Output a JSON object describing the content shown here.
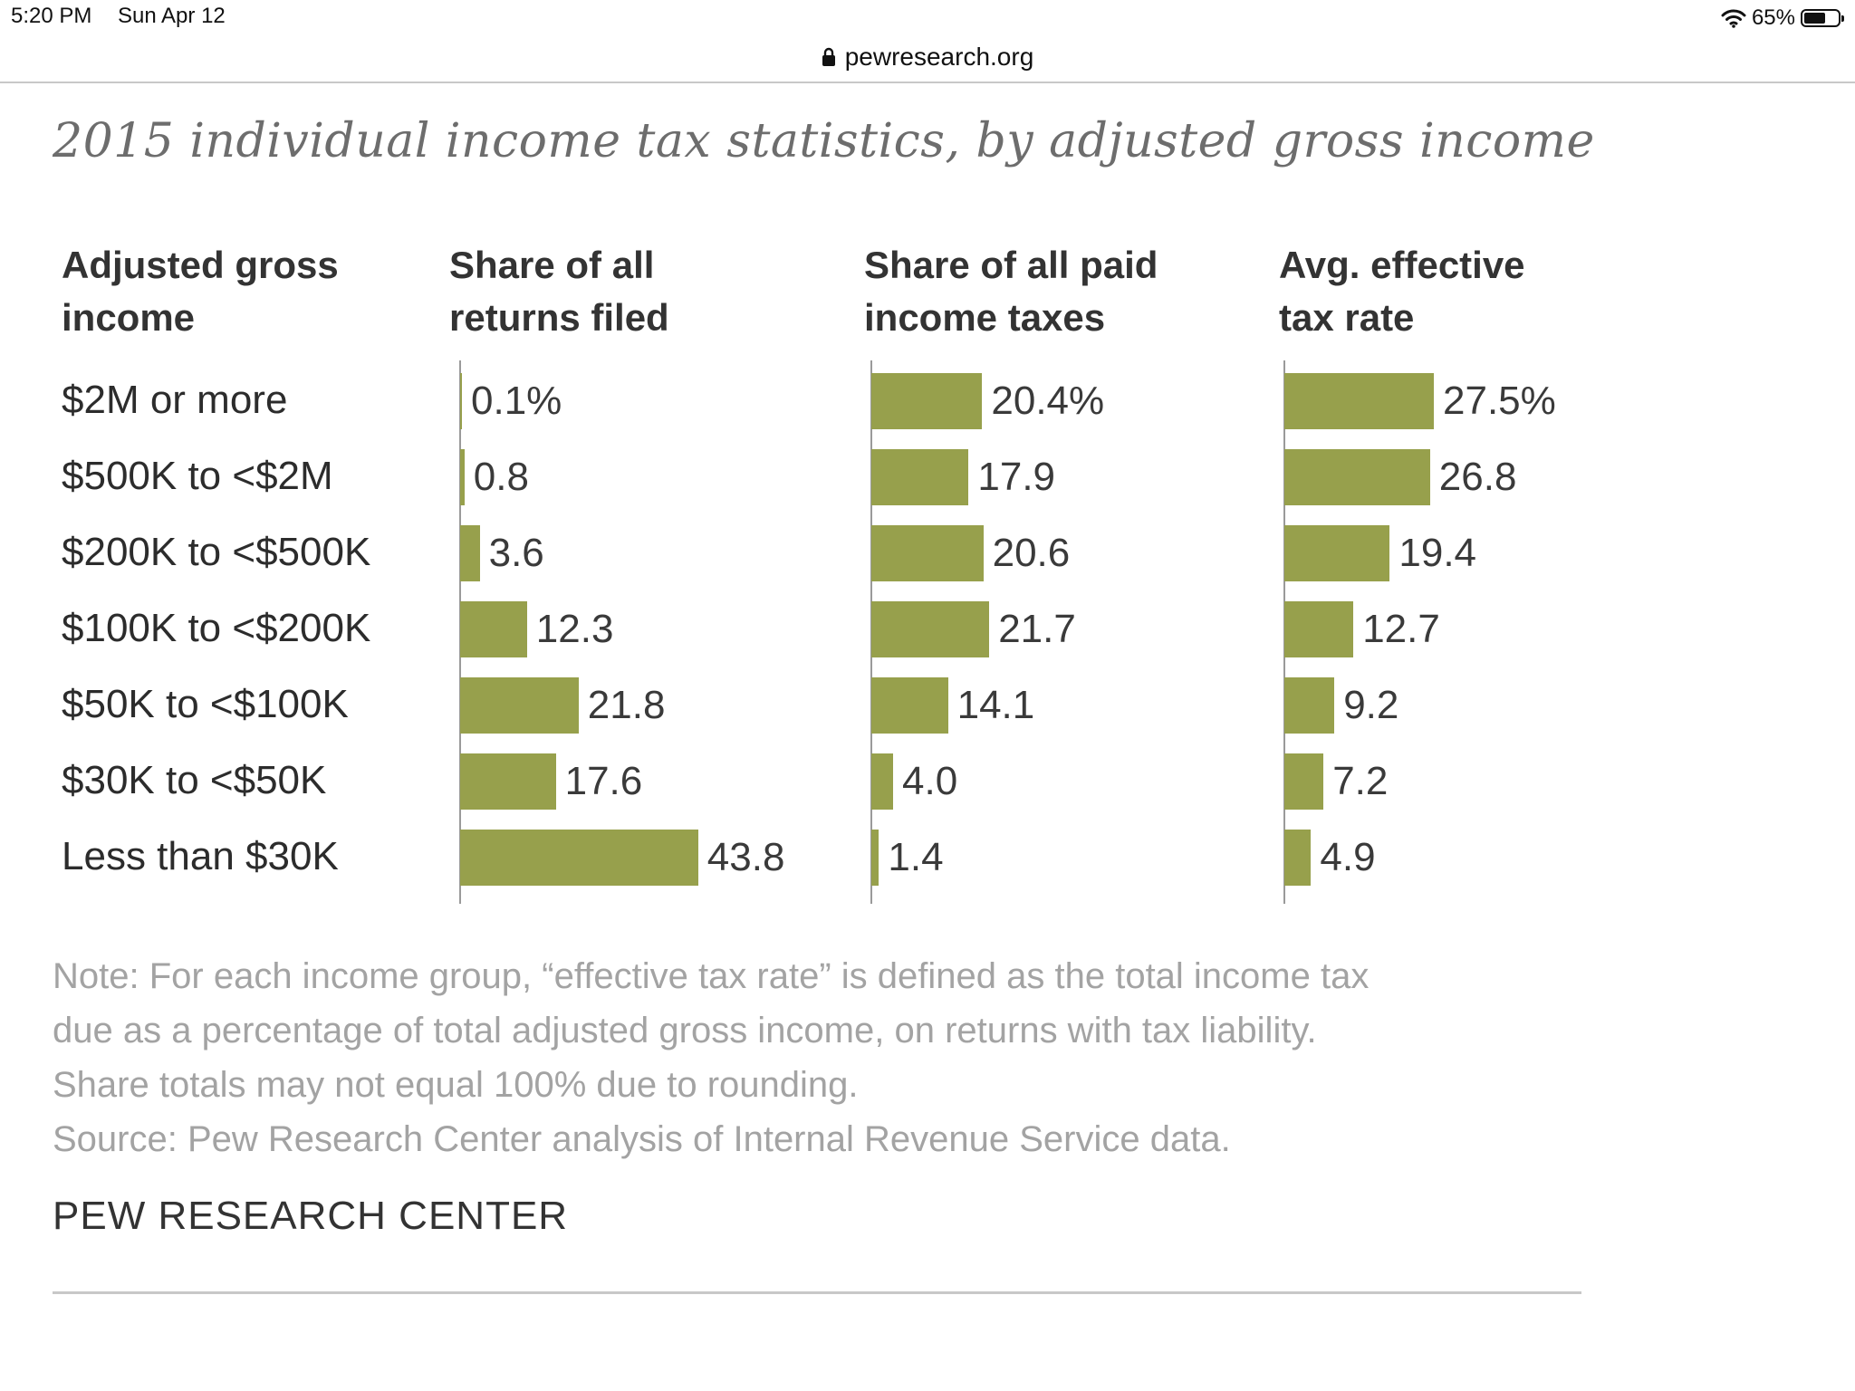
{
  "status_bar": {
    "time": "5:20 PM",
    "date": "Sun Apr 12",
    "battery": "65%",
    "battery_level": 0.65,
    "icons": [
      "wifi-icon",
      "battery-icon"
    ]
  },
  "browser": {
    "url": "pewresearch.org",
    "icon": "lock-icon"
  },
  "chart": {
    "title": "2015 individual income tax statistics, by adjusted gross income",
    "headers": {
      "agi": "Adjusted gross\nincome",
      "returns": "Share of all\nreturns filed",
      "taxes": "Share of all paid\nincome taxes",
      "rate": "Avg. effective\ntax rate"
    },
    "note_lines": [
      "Note: For each income group, “effective tax rate” is defined as the total income tax",
      "due as a percentage of total adjusted gross income, on returns with tax liability.",
      "Share totals may not equal 100% due to rounding.",
      "Source: Pew Research Center analysis of Internal Revenue Service data."
    ],
    "brand": "PEW RESEARCH CENTER",
    "bar_color": "#97a04c"
  },
  "chart_data": {
    "type": "bar",
    "orientation": "horizontal",
    "categories": [
      "$2M or more",
      "$500K to <$2M",
      "$200K to <$500K",
      "$100K to <$200K",
      "$50K to <$100K",
      "$30K to <$50K",
      "Less than $30K"
    ],
    "series": [
      {
        "name": "Share of all returns filed",
        "values": [
          0.1,
          0.8,
          3.6,
          12.3,
          21.8,
          17.6,
          43.8
        ],
        "labels": [
          "0.1%",
          "0.8",
          "3.6",
          "12.3",
          "21.8",
          "17.6",
          "43.8"
        ]
      },
      {
        "name": "Share of all paid income taxes",
        "values": [
          20.4,
          17.9,
          20.6,
          21.7,
          14.1,
          4.0,
          1.4
        ],
        "labels": [
          "20.4%",
          "17.9",
          "20.6",
          "21.7",
          "14.1",
          "4.0",
          "1.4"
        ]
      },
      {
        "name": "Avg. effective tax rate",
        "values": [
          27.5,
          26.8,
          19.4,
          12.7,
          9.2,
          7.2,
          4.9
        ],
        "labels": [
          "27.5%",
          "26.8",
          "19.4",
          "12.7",
          "9.2",
          "7.2",
          "4.9"
        ]
      }
    ],
    "xlim": [
      0,
      45
    ],
    "grid": false,
    "legend": "none"
  }
}
